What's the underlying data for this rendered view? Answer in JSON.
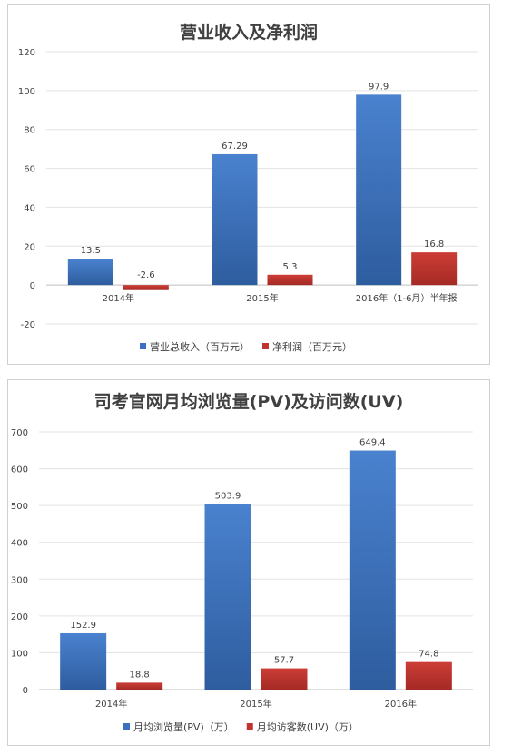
{
  "chart_data": [
    {
      "type": "bar",
      "title": "营业收入及净利润",
      "categories": [
        "2014年",
        "2015年",
        "2016年（1-6月）半年报"
      ],
      "series": [
        {
          "name": "营业总收入（百万元）",
          "values": [
            13.5,
            67.29,
            97.9
          ],
          "labels": [
            "13.5",
            "67.29",
            "97.9"
          ],
          "color": "#3a70bd"
        },
        {
          "name": "净利润（百万元）",
          "values": [
            -2.6,
            5.3,
            16.8
          ],
          "labels": [
            "-2.6",
            "5.3",
            "16.8"
          ],
          "color": "#c0332f"
        }
      ],
      "ylim": [
        -20,
        120
      ],
      "yticks": [
        -20,
        0,
        20,
        40,
        60,
        80,
        100,
        120
      ],
      "grid": true,
      "legend": "bottom"
    },
    {
      "type": "bar",
      "title": "司考官网月均浏览量(PV)及访问数(UV)",
      "categories": [
        "2014年",
        "2015年",
        "2016年"
      ],
      "series": [
        {
          "name": "月均浏览量(PV)（万）",
          "values": [
            152.9,
            503.9,
            649.4
          ],
          "labels": [
            "152.9",
            "503.9",
            "649.4"
          ],
          "color": "#3a70bd"
        },
        {
          "name": "月均访客数(UV)（万）",
          "values": [
            18.8,
            57.7,
            74.8
          ],
          "labels": [
            "18.8",
            "57.7",
            "74.8"
          ],
          "color": "#c0332f"
        }
      ],
      "ylim": [
        0,
        700
      ],
      "yticks": [
        0,
        100,
        200,
        300,
        400,
        500,
        600,
        700
      ],
      "grid": true,
      "legend": "bottom"
    }
  ]
}
